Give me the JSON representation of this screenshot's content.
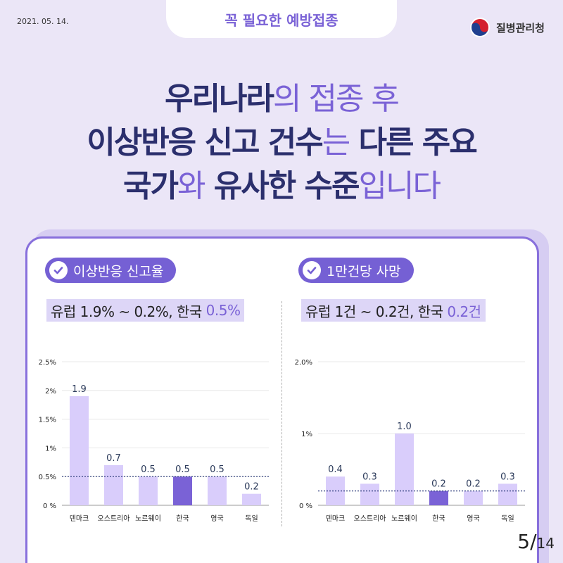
{
  "header": {
    "date": "2021. 05. 14.",
    "pill": "꼭 필요한 예방접종",
    "org": "질병관리청"
  },
  "headline": {
    "line1_a": "우리나라",
    "line1_b": "의 접종 후",
    "line2_a": "이상반응 신고 건수",
    "line2_b": "는",
    "line2_c": " 다른 주요",
    "line3_a": "국가",
    "line3_b": "와",
    "line3_c": " 유사한 수준",
    "line3_d": "입니다"
  },
  "left": {
    "badge": "이상반응 신고율",
    "sub_prefix": "유럽 1.9% ~ 0.2%, 한국 ",
    "sub_highlight": "0.5%"
  },
  "right": {
    "badge": "1만건당 사망",
    "sub_prefix": "유럽 1건 ~ 0.2건, 한국 ",
    "sub_highlight": "0.2건"
  },
  "page": {
    "current": "5",
    "total": "14"
  },
  "colors": {
    "accent": "#7560d4",
    "bar": "#d9cdfb",
    "highlight_bar": "#7a62d6",
    "reference": "#2b3a7a"
  },
  "icons": [
    "check-circle-icon",
    "taegeuk-logo-icon"
  ],
  "chart_data": [
    {
      "type": "bar",
      "categories": [
        "덴마크",
        "오스트리아",
        "노르웨이",
        "한국",
        "영국",
        "독일"
      ],
      "values": [
        1.9,
        0.7,
        0.5,
        0.5,
        0.5,
        0.2
      ],
      "labels": [
        "1.9",
        "0.7",
        "0.5",
        "0.5",
        "0.5",
        "0.2"
      ],
      "highlight_index": 3,
      "reference_line": 0.5,
      "ylim": [
        0,
        2.5
      ],
      "yticks": [
        0,
        0.5,
        1,
        1.5,
        2,
        2.5
      ],
      "yticklabels": [
        "0 %",
        "0.5%",
        "1%",
        "1.5%",
        "2%",
        "2.5%"
      ],
      "grid": true
    },
    {
      "type": "bar",
      "categories": [
        "덴마크",
        "오스트리아",
        "노르웨이",
        "한국",
        "영국",
        "독일"
      ],
      "values": [
        0.4,
        0.3,
        1.0,
        0.2,
        0.2,
        0.3
      ],
      "labels": [
        "0.4",
        "0.3",
        "1.0",
        "0.2",
        "0.2",
        "0.3"
      ],
      "highlight_index": 3,
      "reference_line": 0.2,
      "ylim": [
        0,
        2.0
      ],
      "yticks": [
        0,
        1,
        2
      ],
      "yticklabels": [
        "0 %",
        "1%",
        "2.0%"
      ],
      "grid": true
    }
  ]
}
